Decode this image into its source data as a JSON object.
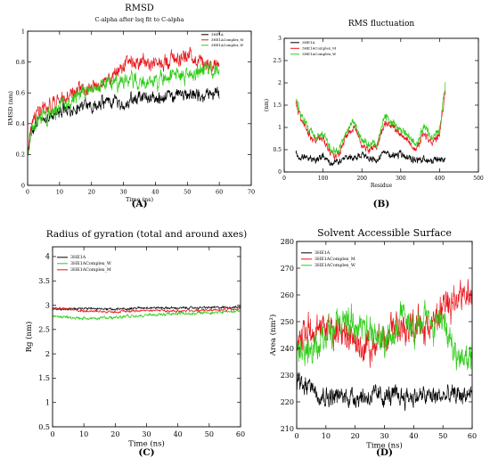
{
  "colors": {
    "black": "#000000",
    "red": "#e8141a",
    "green": "#2ccc16"
  },
  "chart_data": [
    {
      "panel": "(A)",
      "type": "line",
      "title": "RMSD",
      "subtitle": "C-alpha after lsq fit to C-alpha",
      "xlabel": "Time (ns)",
      "ylabel": "RMSD (nm)",
      "xlim": [
        0,
        70
      ],
      "ylim": [
        0,
        1
      ],
      "xticks": [
        0,
        10,
        20,
        30,
        40,
        50,
        60,
        70
      ],
      "yticks": [
        0,
        0.2,
        0.4,
        0.6,
        0.8,
        1
      ],
      "legend_position": "top-right",
      "series": [
        {
          "name": "3HE1A",
          "color": "#000000",
          "noise": 0.03,
          "x": [
            0,
            1,
            3,
            6,
            10,
            15,
            20,
            25,
            30,
            35,
            40,
            45,
            50,
            55,
            60
          ],
          "y": [
            0.18,
            0.35,
            0.42,
            0.44,
            0.48,
            0.5,
            0.52,
            0.55,
            0.52,
            0.58,
            0.55,
            0.58,
            0.6,
            0.58,
            0.62
          ]
        },
        {
          "name": "3HE1AComplex_M",
          "color": "#e8141a",
          "noise": 0.035,
          "x": [
            0,
            1,
            3,
            6,
            10,
            15,
            20,
            25,
            30,
            32,
            35,
            40,
            45,
            50,
            55,
            60
          ],
          "y": [
            0.22,
            0.38,
            0.45,
            0.5,
            0.55,
            0.6,
            0.65,
            0.68,
            0.75,
            0.82,
            0.8,
            0.78,
            0.82,
            0.85,
            0.8,
            0.78
          ]
        },
        {
          "name": "3HE1AComplex_W",
          "color": "#2ccc16",
          "noise": 0.035,
          "x": [
            0,
            1,
            3,
            6,
            10,
            15,
            20,
            25,
            30,
            35,
            40,
            45,
            50,
            55,
            60
          ],
          "y": [
            0.2,
            0.36,
            0.42,
            0.45,
            0.5,
            0.58,
            0.62,
            0.65,
            0.66,
            0.68,
            0.68,
            0.72,
            0.7,
            0.75,
            0.74
          ]
        }
      ]
    },
    {
      "panel": "(B)",
      "type": "line",
      "title": "RMS fluctuation",
      "xlabel": "Residue",
      "ylabel": "(nm)",
      "xlim": [
        0,
        500
      ],
      "ylim": [
        0,
        3
      ],
      "xticks": [
        0,
        100,
        200,
        300,
        400,
        500
      ],
      "yticks": [
        0,
        0.5,
        1,
        1.5,
        2,
        2.5,
        3
      ],
      "legend_position": "top-left",
      "series": [
        {
          "name": "3HE1A",
          "color": "#000000",
          "noise": 0.05,
          "x": [
            30,
            40,
            60,
            80,
            100,
            120,
            140,
            160,
            180,
            200,
            220,
            240,
            260,
            280,
            300,
            320,
            340,
            360,
            380,
            400,
            415
          ],
          "y": [
            0.45,
            0.3,
            0.35,
            0.25,
            0.35,
            0.2,
            0.25,
            0.35,
            0.3,
            0.4,
            0.3,
            0.25,
            0.45,
            0.35,
            0.4,
            0.3,
            0.25,
            0.3,
            0.25,
            0.3,
            0.25
          ]
        },
        {
          "name": "3HE1AComplex_M",
          "color": "#e8141a",
          "noise": 0.06,
          "x": [
            30,
            40,
            60,
            80,
            100,
            120,
            140,
            160,
            180,
            200,
            220,
            240,
            260,
            280,
            300,
            320,
            340,
            360,
            380,
            400,
            415
          ],
          "y": [
            1.55,
            1.3,
            0.9,
            0.7,
            0.75,
            0.4,
            0.35,
            0.85,
            1.05,
            0.6,
            0.5,
            0.6,
            1.15,
            1.0,
            0.85,
            0.65,
            0.5,
            0.9,
            0.65,
            0.8,
            1.9
          ]
        },
        {
          "name": "3HE1AComplex_W",
          "color": "#2ccc16",
          "noise": 0.06,
          "x": [
            30,
            40,
            60,
            80,
            100,
            120,
            140,
            160,
            180,
            200,
            220,
            240,
            260,
            280,
            300,
            320,
            340,
            360,
            380,
            400,
            415
          ],
          "y": [
            1.65,
            1.4,
            1.0,
            0.8,
            0.85,
            0.5,
            0.45,
            0.95,
            1.15,
            0.7,
            0.6,
            0.65,
            1.25,
            1.1,
            0.95,
            0.8,
            0.6,
            1.05,
            0.75,
            0.95,
            2.0
          ]
        }
      ]
    },
    {
      "panel": "(C)",
      "type": "line",
      "title": "Radius of gyration (total and around axes)",
      "xlabel": "Time (ns)",
      "ylabel": "Rg (nm)",
      "xlim": [
        0,
        60
      ],
      "ylim": [
        0.5,
        4.2
      ],
      "xticks": [
        0,
        10,
        20,
        30,
        40,
        50,
        60
      ],
      "yticks": [
        0.5,
        1,
        1.5,
        2,
        2.5,
        3,
        3.5,
        4
      ],
      "legend_position": "top-left",
      "series": [
        {
          "name": "3HE1A",
          "color": "#000000",
          "noise": 0.015,
          "x": [
            0,
            10,
            20,
            30,
            40,
            50,
            60
          ],
          "y": [
            2.92,
            2.93,
            2.92,
            2.95,
            2.94,
            2.95,
            2.96
          ]
        },
        {
          "name": "3HE1AComplex_W",
          "color": "#2ccc16",
          "noise": 0.02,
          "x": [
            0,
            10,
            20,
            30,
            40,
            50,
            60
          ],
          "y": [
            2.78,
            2.72,
            2.75,
            2.8,
            2.82,
            2.85,
            2.88
          ]
        },
        {
          "name": "3HE1AComplex_M",
          "color": "#e8141a",
          "noise": 0.015,
          "x": [
            0,
            10,
            20,
            30,
            40,
            50,
            60
          ],
          "y": [
            2.95,
            2.88,
            2.86,
            2.9,
            2.88,
            2.9,
            2.92
          ]
        }
      ]
    },
    {
      "panel": "(D)",
      "type": "line",
      "title": "Solvent Accessible Surface",
      "xlabel": "Time (ns)",
      "ylabel": "Area (nm²)",
      "xlim": [
        0,
        60
      ],
      "ylim": [
        210,
        280
      ],
      "xticks": [
        0,
        10,
        20,
        30,
        40,
        50,
        60
      ],
      "yticks": [
        210,
        220,
        230,
        240,
        250,
        260,
        270,
        280
      ],
      "legend_position": "top-left",
      "series": [
        {
          "name": "3HE1A",
          "color": "#000000",
          "noise": 2.5,
          "x": [
            0,
            5,
            10,
            20,
            30,
            40,
            50,
            60
          ],
          "y": [
            227,
            225,
            222,
            222,
            222,
            222,
            222,
            223
          ]
        },
        {
          "name": "3HE1AComplex_M",
          "color": "#e8141a",
          "noise": 4,
          "x": [
            0,
            5,
            10,
            15,
            20,
            25,
            30,
            35,
            40,
            45,
            50,
            55,
            60
          ],
          "y": [
            245,
            247,
            248,
            245,
            242,
            240,
            245,
            250,
            248,
            247,
            255,
            260,
            258
          ]
        },
        {
          "name": "3HE1AComplex_W",
          "color": "#2ccc16",
          "noise": 4,
          "x": [
            0,
            5,
            10,
            15,
            20,
            25,
            30,
            35,
            40,
            45,
            50,
            55,
            60
          ],
          "y": [
            240,
            238,
            245,
            252,
            250,
            245,
            242,
            252,
            248,
            250,
            248,
            238,
            236
          ]
        }
      ]
    }
  ]
}
